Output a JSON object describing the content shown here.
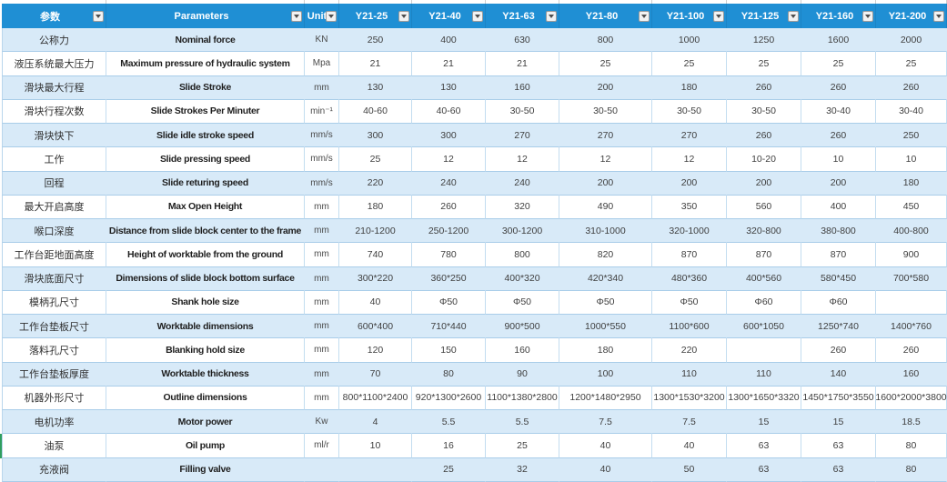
{
  "colors": {
    "header_bg": "#1f8fd4",
    "header_text": "#ffffff",
    "stripe_bg": "#d8eaf8",
    "grid_border": "#a9cde9",
    "body_text": "#3f3f3f"
  },
  "table": {
    "headers": [
      {
        "label": "参数",
        "has_filter": true
      },
      {
        "label": "Parameters",
        "has_filter": true
      },
      {
        "label": "Unit",
        "has_filter": true
      },
      {
        "label": "Y21-25",
        "has_filter": true
      },
      {
        "label": "Y21-40",
        "has_filter": true
      },
      {
        "label": "Y21-63",
        "has_filter": true
      },
      {
        "label": "Y21-80",
        "has_filter": true
      },
      {
        "label": "Y21-100",
        "has_filter": true
      },
      {
        "label": "Y21-125",
        "has_filter": true
      },
      {
        "label": "Y21-160",
        "has_filter": true
      },
      {
        "label": "Y21-200",
        "has_filter": true
      }
    ],
    "rows": [
      {
        "cn": "公称力",
        "en": "Nominal force",
        "unit": "KN",
        "values": [
          "250",
          "400",
          "630",
          "800",
          "1000",
          "1250",
          "1600",
          "2000"
        ]
      },
      {
        "cn": "液压系统最大压力",
        "en": "Maximum pressure of hydraulic system",
        "unit": "Mpa",
        "values": [
          "21",
          "21",
          "21",
          "25",
          "25",
          "25",
          "25",
          "25"
        ]
      },
      {
        "cn": "滑块最大行程",
        "en": "Slide Stroke",
        "unit": "mm",
        "values": [
          "130",
          "130",
          "160",
          "200",
          "180",
          "260",
          "260",
          "260"
        ]
      },
      {
        "cn": "滑块行程次数",
        "en": "Slide Strokes Per Minuter",
        "unit": "min⁻¹",
        "values": [
          "40-60",
          "40-60",
          "30-50",
          "30-50",
          "30-50",
          "30-50",
          "30-40",
          "30-40"
        ]
      },
      {
        "cn": "滑块快下",
        "en": "Slide idle stroke speed",
        "unit": "mm/s",
        "values": [
          "300",
          "300",
          "270",
          "270",
          "270",
          "260",
          "260",
          "250"
        ]
      },
      {
        "cn": "工作",
        "en": "Slide pressing speed",
        "unit": "mm/s",
        "values": [
          "25",
          "12",
          "12",
          "12",
          "12",
          "10-20",
          "10",
          "10"
        ]
      },
      {
        "cn": "回程",
        "en": "Slide returing speed",
        "unit": "mm/s",
        "values": [
          "220",
          "240",
          "240",
          "200",
          "200",
          "200",
          "200",
          "180"
        ]
      },
      {
        "cn": "最大开启高度",
        "en": "Max Open Height",
        "unit": "mm",
        "values": [
          "180",
          "260",
          "320",
          "490",
          "350",
          "560",
          "400",
          "450"
        ]
      },
      {
        "cn": "喉口深度",
        "en": "Distance from slide block center to the frame",
        "unit": "mm",
        "values": [
          "210-1200",
          "250-1200",
          "300-1200",
          "310-1000",
          "320-1000",
          "320-800",
          "380-800",
          "400-800"
        ]
      },
      {
        "cn": "工作台距地面高度",
        "en": "Height of worktable from the ground",
        "unit": "mm",
        "values": [
          "740",
          "780",
          "800",
          "820",
          "870",
          "870",
          "870",
          "900"
        ]
      },
      {
        "cn": "滑块底面尺寸",
        "en": "Dimensions of slide block bottom surface",
        "unit": "mm",
        "values": [
          "300*220",
          "360*250",
          "400*320",
          "420*340",
          "480*360",
          "400*560",
          "580*450",
          "700*580"
        ]
      },
      {
        "cn": "模柄孔尺寸",
        "en": "Shank hole size",
        "unit": "mm",
        "values": [
          "40",
          "Φ50",
          "Φ50",
          "Φ50",
          "Φ50",
          "Φ60",
          "Φ60",
          ""
        ]
      },
      {
        "cn": "工作台垫板尺寸",
        "en": "Worktable dimensions",
        "unit": "mm",
        "values": [
          "600*400",
          "710*440",
          "900*500",
          "1000*550",
          "1100*600",
          "600*1050",
          "1250*740",
          "1400*760"
        ]
      },
      {
        "cn": "落料孔尺寸",
        "en": "Blanking hold size",
        "unit": "mm",
        "values": [
          "120",
          "150",
          "160",
          "180",
          "220",
          "",
          "260",
          "260"
        ]
      },
      {
        "cn": "工作台垫板厚度",
        "en": "Worktable thickness",
        "unit": "mm",
        "values": [
          "70",
          "80",
          "90",
          "100",
          "110",
          "110",
          "140",
          "160"
        ]
      },
      {
        "cn": "机器外形尺寸",
        "en": "Outline dimensions",
        "unit": "mm",
        "values": [
          "800*1100*2400",
          "920*1300*2600",
          "1100*1380*2800",
          "1200*1480*2950",
          "1300*1530*3200",
          "1300*1650*3320",
          "1450*1750*3550",
          "1600*2000*3800"
        ]
      },
      {
        "cn": "电机功率",
        "en": "Motor power",
        "unit": "Kw",
        "values": [
          "4",
          "5.5",
          "5.5",
          "7.5",
          "7.5",
          "15",
          "15",
          "18.5"
        ]
      },
      {
        "cn": "油泵",
        "en": "Oil pump",
        "unit": "ml/r",
        "values": [
          "10",
          "16",
          "25",
          "40",
          "40",
          "63",
          "63",
          "80"
        ]
      },
      {
        "cn": "充液阀",
        "en": "Filling valve",
        "unit": "",
        "values": [
          "",
          "25",
          "32",
          "40",
          "50",
          "63",
          "63",
          "80"
        ]
      }
    ]
  }
}
